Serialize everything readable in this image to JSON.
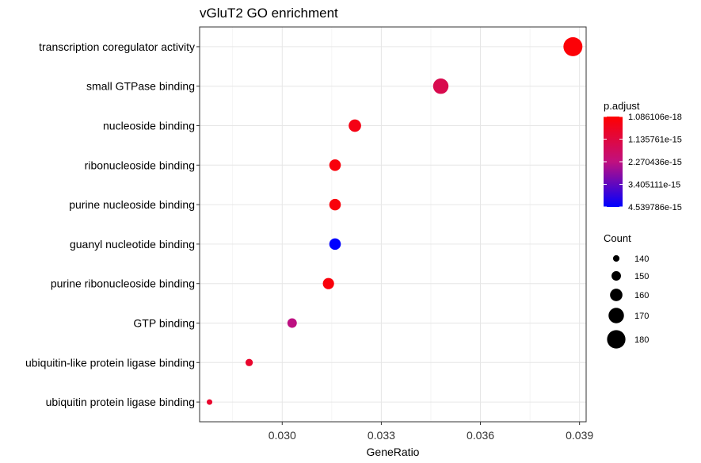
{
  "chart_data": {
    "type": "scatter",
    "title": "vGluT2 GO enrichment",
    "xlabel": "GeneRatio",
    "ylabel": "",
    "xlim": [
      0.0275,
      0.0392
    ],
    "x_ticks": [
      "0.030",
      "0.033",
      "0.036",
      "0.039"
    ],
    "x_tick_values": [
      0.03,
      0.033,
      0.036,
      0.039
    ],
    "categories": [
      "transcription coregulator activity",
      "small GTPase binding",
      "nucleoside binding",
      "ribonucleoside binding",
      "purine nucleoside binding",
      "guanyl nucleotide binding",
      "purine ribonucleoside binding",
      "GTP binding",
      "ubiquitin-like protein ligase binding",
      "ubiquitin protein ligase binding"
    ],
    "points": [
      {
        "term": "transcription coregulator activity",
        "gene_ratio": 0.0388,
        "count": 182,
        "p_adjust": 1.2e-16
      },
      {
        "term": "small GTPase binding",
        "gene_ratio": 0.0348,
        "count": 170,
        "p_adjust": 1.4e-15
      },
      {
        "term": "nucleoside binding",
        "gene_ratio": 0.0322,
        "count": 160,
        "p_adjust": 3.5e-16
      },
      {
        "term": "ribonucleoside binding",
        "gene_ratio": 0.0316,
        "count": 157,
        "p_adjust": 2e-16
      },
      {
        "term": "purine nucleoside binding",
        "gene_ratio": 0.0316,
        "count": 157,
        "p_adjust": 2e-16
      },
      {
        "term": "guanyl nucleotide binding",
        "gene_ratio": 0.0316,
        "count": 157,
        "p_adjust": 4.54e-15
      },
      {
        "term": "purine ribonucleoside binding",
        "gene_ratio": 0.0314,
        "count": 156,
        "p_adjust": 2e-16
      },
      {
        "term": "GTP binding",
        "gene_ratio": 0.0303,
        "count": 150,
        "p_adjust": 2.3e-15
      },
      {
        "term": "ubiquitin-like protein ligase binding",
        "gene_ratio": 0.029,
        "count": 143,
        "p_adjust": 8e-16
      },
      {
        "term": "ubiquitin protein ligase binding",
        "gene_ratio": 0.0278,
        "count": 137,
        "p_adjust": 8e-16
      }
    ],
    "color_legend": {
      "title": "p.adjust",
      "min": 1.086106e-18,
      "max": 4.539786e-15,
      "labels": [
        "1.086106e-18",
        "1.135761e-15",
        "2.270436e-15",
        "3.405111e-15",
        "4.539786e-15"
      ],
      "values": [
        1.086106e-18,
        1.135761e-15,
        2.270436e-15,
        3.405111e-15,
        4.539786e-15
      ],
      "low_color": "#ff0000",
      "high_color": "#0000ff"
    },
    "size_legend": {
      "title": "Count",
      "labels": [
        "140",
        "150",
        "160",
        "170",
        "180"
      ],
      "values": [
        140,
        150,
        160,
        170,
        180
      ]
    },
    "grid": true,
    "legend_position": "right"
  }
}
